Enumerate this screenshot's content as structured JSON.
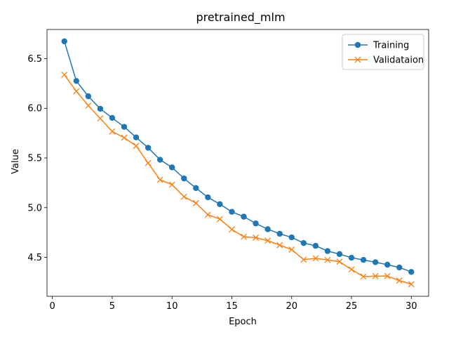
{
  "chart_data": {
    "type": "line",
    "title": "pretrained_mlm",
    "xlabel": "Epoch",
    "ylabel": "Value",
    "xlim": [
      -0.45,
      31.45
    ],
    "ylim": [
      4.108,
      6.793
    ],
    "xticks": [
      0,
      5,
      10,
      15,
      20,
      25,
      30
    ],
    "yticks": [
      4.5,
      5.0,
      5.5,
      6.0,
      6.5
    ],
    "ytick_labels": [
      "4.5",
      "5.0",
      "5.5",
      "6.0",
      "6.5"
    ],
    "grid": false,
    "legend_position": "top-right",
    "x": [
      1,
      2,
      3,
      4,
      5,
      6,
      7,
      8,
      9,
      10,
      11,
      12,
      13,
      14,
      15,
      16,
      17,
      18,
      19,
      20,
      21,
      22,
      23,
      24,
      25,
      26,
      27,
      28,
      29,
      30
    ],
    "series": [
      {
        "name": "Training",
        "color": "#1f77b4",
        "marker": "circle",
        "values": [
          6.674,
          6.275,
          6.121,
          5.995,
          5.903,
          5.813,
          5.707,
          5.603,
          5.482,
          5.405,
          5.294,
          5.197,
          5.104,
          5.035,
          4.958,
          4.909,
          4.841,
          4.783,
          4.737,
          4.701,
          4.644,
          4.616,
          4.563,
          4.533,
          4.496,
          4.474,
          4.451,
          4.426,
          4.398,
          4.353
        ]
      },
      {
        "name": "Validataion",
        "color": "#ff7f0e",
        "marker": "x",
        "values": [
          6.337,
          6.172,
          6.027,
          5.898,
          5.766,
          5.704,
          5.622,
          5.449,
          5.28,
          5.232,
          5.11,
          5.046,
          4.929,
          4.885,
          4.781,
          4.707,
          4.698,
          4.668,
          4.623,
          4.578,
          4.477,
          4.49,
          4.474,
          4.456,
          4.378,
          4.306,
          4.311,
          4.311,
          4.266,
          4.23
        ]
      }
    ]
  }
}
